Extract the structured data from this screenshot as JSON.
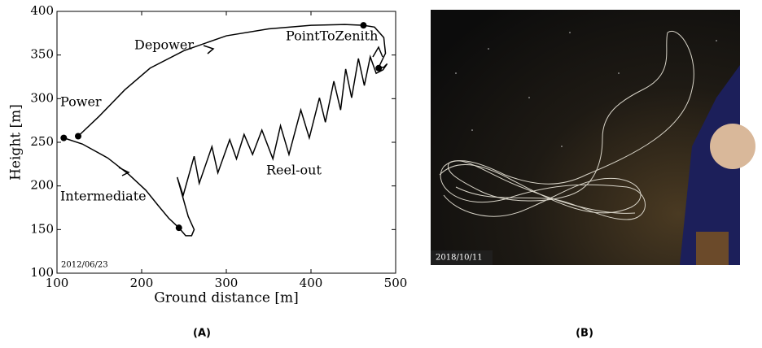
{
  "chart_data": {
    "type": "line",
    "xlabel": "Ground distance [m]",
    "ylabel": "Height [m]",
    "xlim": [
      100,
      500
    ],
    "ylim": [
      100,
      400
    ],
    "xticks": [
      100,
      200,
      300,
      400,
      500
    ],
    "yticks": [
      100,
      150,
      200,
      250,
      300,
      350,
      400
    ],
    "color": "#000000",
    "x": [
      108,
      130,
      160,
      185,
      205,
      220,
      232,
      244,
      252,
      259,
      262,
      255,
      242,
      249,
      262,
      268,
      283,
      290,
      304,
      312,
      321,
      331,
      342,
      355,
      364,
      374,
      388,
      398,
      410,
      417,
      427,
      435,
      441,
      448,
      456,
      463,
      470,
      477,
      485,
      490,
      486,
      480,
      488,
      486,
      475,
      462,
      440,
      400,
      350,
      300,
      250,
      210,
      180,
      150,
      125
    ],
    "values": [
      255,
      248,
      232,
      213,
      195,
      177,
      163,
      152,
      143,
      143,
      150,
      165,
      210,
      189,
      234,
      203,
      245,
      215,
      253,
      231,
      259,
      236,
      264,
      231,
      269,
      236,
      287,
      255,
      301,
      273,
      320,
      287,
      334,
      301,
      346,
      315,
      348,
      329,
      333,
      340,
      336,
      336,
      352,
      370,
      382,
      384,
      385,
      384,
      380,
      372,
      355,
      335,
      310,
      280,
      257
    ],
    "points": {
      "x": [
        108,
        125,
        244,
        462,
        480
      ],
      "y": [
        255,
        257,
        152,
        384,
        335
      ]
    },
    "annotations": [
      "Depower",
      "PointToZenith",
      "Power",
      "Reel-out",
      "Intermediate"
    ],
    "date": "2012/06/23"
  },
  "photo": {
    "date": "2018/10/11"
  },
  "captions": [
    "(A)",
    "(B)"
  ]
}
